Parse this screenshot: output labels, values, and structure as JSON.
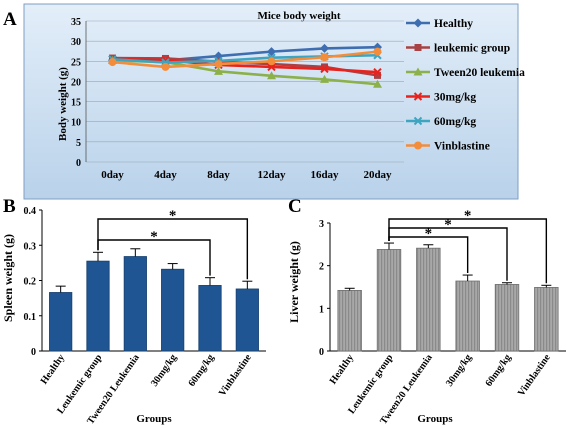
{
  "chart_data": [
    {
      "panel": "A",
      "type": "line",
      "title": "Mice body weight",
      "xlabel": "",
      "ylabel": "Body weight (g)",
      "ylim": [
        0,
        35
      ],
      "yticks": [
        0,
        5,
        10,
        15,
        20,
        25,
        30,
        35
      ],
      "categories": [
        "0day",
        "4day",
        "8day",
        "12day",
        "16day",
        "20day"
      ],
      "grid": true,
      "legend": "right",
      "series": [
        {
          "name": "Healthy",
          "color": "#3f6eb0",
          "marker": "diamond",
          "values": [
            25.3,
            25.2,
            26.3,
            27.4,
            28.2,
            28.5
          ]
        },
        {
          "name": "leukemic group",
          "color": "#a84245",
          "marker": "square",
          "values": [
            25.8,
            25.7,
            24.9,
            24.3,
            23.6,
            21.5
          ]
        },
        {
          "name": "Tween20 leukemia",
          "color": "#8cb04a",
          "marker": "triangle",
          "values": [
            25.2,
            24.8,
            22.5,
            21.4,
            20.5,
            19.3
          ]
        },
        {
          "name": "30mg/kg",
          "color": "#e8231e",
          "marker": "x",
          "values": [
            25.5,
            25.3,
            24.1,
            23.6,
            23.1,
            22.3
          ]
        },
        {
          "name": "60mg/kg",
          "color": "#3ea5c0",
          "marker": "x",
          "values": [
            25.5,
            24.7,
            25.1,
            25.9,
            26.2,
            26.5
          ]
        },
        {
          "name": "Vinblastine",
          "color": "#f28d3c",
          "marker": "circle",
          "values": [
            24.8,
            23.6,
            24.3,
            25.0,
            26.0,
            27.4
          ]
        }
      ]
    },
    {
      "panel": "B",
      "type": "bar",
      "title": "",
      "xlabel": "Groups",
      "ylabel": "Spleen weight (g)",
      "ylim": [
        0,
        0.4
      ],
      "yticks": [
        "0",
        "0.1",
        "0.2",
        "0.3",
        "0.4"
      ],
      "bar_color": "#1f5592",
      "categories": [
        "Healthy",
        "Leukemic group",
        "Tween20 Leukemia",
        "30mg/kg",
        "60mg/kg",
        "Vinblastine"
      ],
      "values": [
        0.166,
        0.255,
        0.268,
        0.232,
        0.186,
        0.176
      ],
      "errors": [
        0.018,
        0.025,
        0.022,
        0.016,
        0.022,
        0.022
      ],
      "significance": [
        {
          "from": "Leukemic group",
          "to": "Vinblastine",
          "label": "*"
        },
        {
          "from": "Leukemic group",
          "to": "60mg/kg",
          "label": "*"
        }
      ]
    },
    {
      "panel": "C",
      "type": "bar",
      "title": "",
      "xlabel": "Groups",
      "ylabel": "Liver weight (g)",
      "ylim": [
        0,
        3
      ],
      "yticks": [
        "0",
        "1",
        "2",
        "3"
      ],
      "bar_color": "#9e9e9e",
      "categories": [
        "Healthy",
        "Leukemic group",
        "Tween20 Leukemia",
        "30mg/kg",
        "60mg/kg",
        "Vinblastine"
      ],
      "values": [
        1.42,
        2.38,
        2.41,
        1.64,
        1.56,
        1.49
      ],
      "errors": [
        0.05,
        0.15,
        0.08,
        0.14,
        0.04,
        0.05
      ],
      "significance": [
        {
          "from": "Leukemic group",
          "to": "Vinblastine",
          "label": "*"
        },
        {
          "from": "Leukemic group",
          "to": "60mg/kg",
          "label": "*"
        },
        {
          "from": "Leukemic group",
          "to": "30mg/kg",
          "label": "*"
        }
      ]
    }
  ]
}
